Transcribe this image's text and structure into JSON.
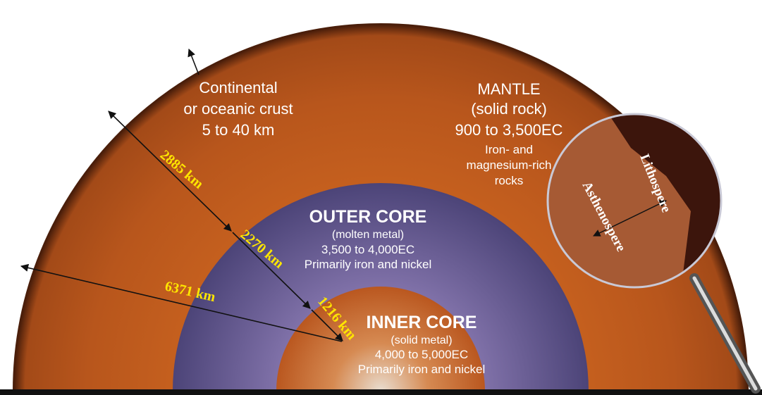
{
  "crust": {
    "lines": [
      "Continental",
      "or oceanic crust",
      "5 to 40 km"
    ]
  },
  "mantle": {
    "title": "MANTLE",
    "lines": [
      "(solid rock)",
      "900 to 3,500EC",
      "Iron- and",
      "magnesium-rich",
      "rocks"
    ]
  },
  "outer_core": {
    "title": "OUTER CORE",
    "lines": [
      "(molten metal)",
      "3,500 to 4,000EC",
      "Primarily iron and nickel"
    ]
  },
  "inner_core": {
    "title": "INNER CORE",
    "lines": [
      "(solid metal)",
      "4,000 to 5,000EC",
      "Primarily iron and nickel"
    ]
  },
  "measurements": [
    "2885 km",
    "2270 km",
    "1216 km",
    "6371 km"
  ],
  "inset": {
    "lithosphere": "Lithospere",
    "asthenosphere": "Asthenospere"
  }
}
